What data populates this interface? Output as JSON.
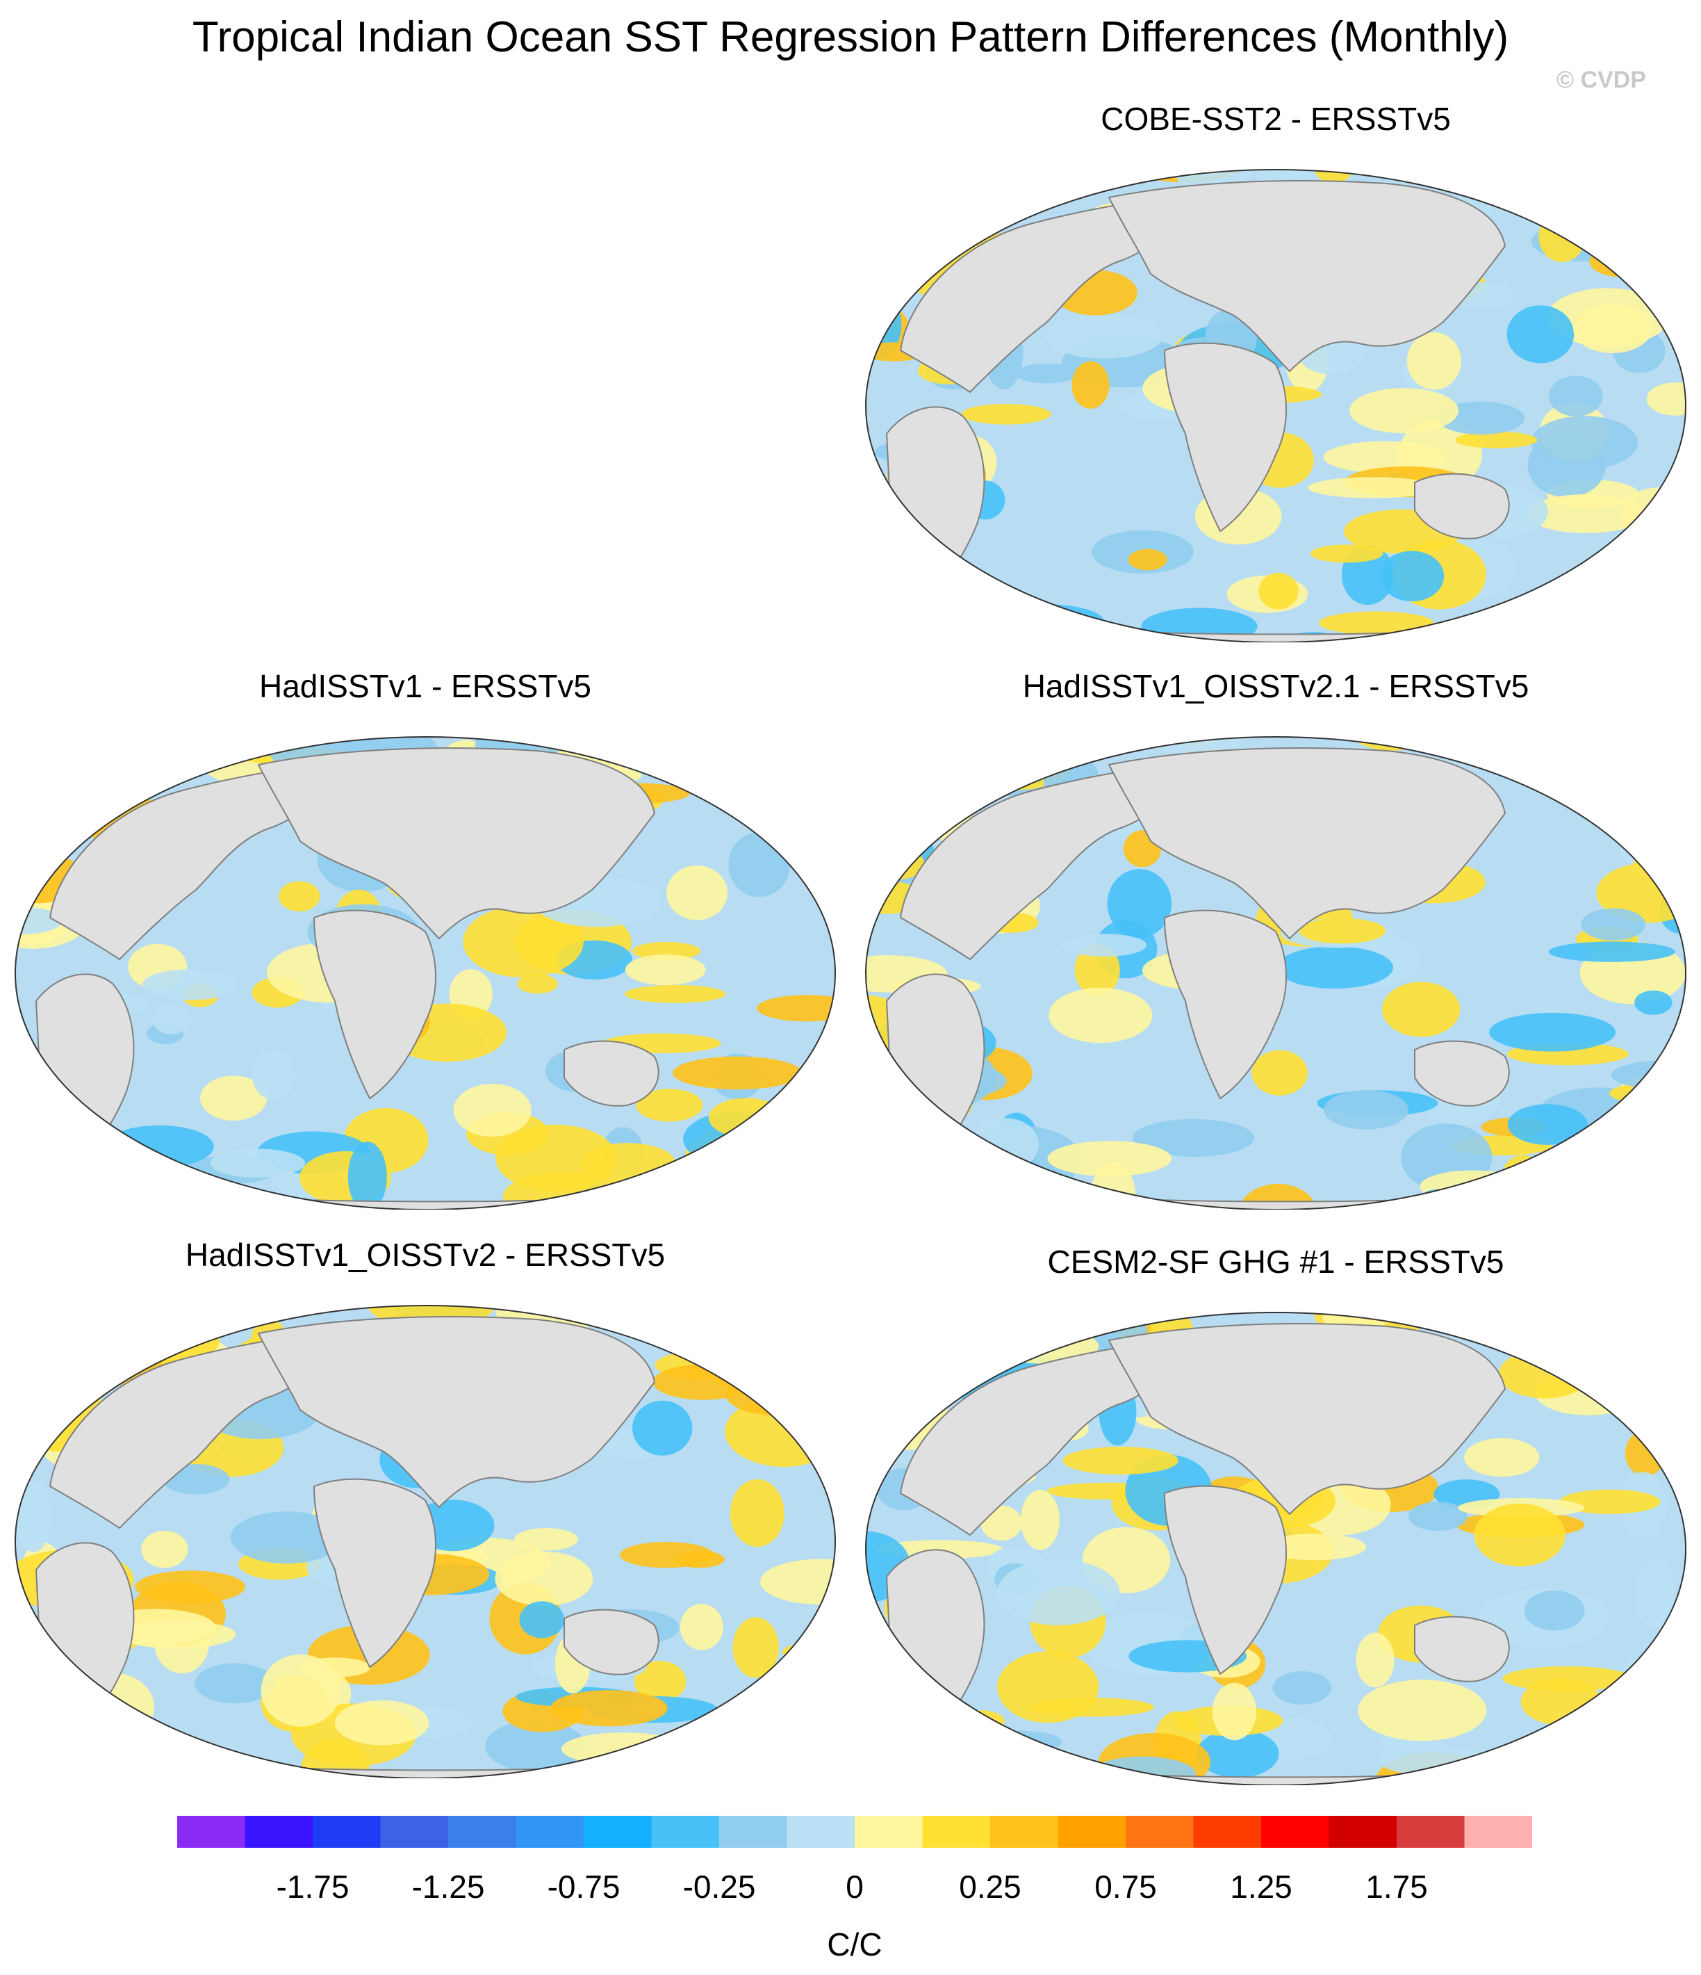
{
  "title": "Tropical Indian Ocean SST Regression Pattern Differences (Monthly)",
  "copyright": "© CVDP",
  "colors": {
    "land": "#e0e0e0",
    "coast": "#7f7f7f",
    "ocean_neutral_pos": "#fff59d",
    "ocean_neutral_neg": "#b8dcf2"
  },
  "panels": [
    {
      "id": "cobe",
      "title": "COBE-SST2 - ERSSTv5"
    },
    {
      "id": "hadisst",
      "title": "HadISSTv1 - ERSSTv5"
    },
    {
      "id": "hadoi21",
      "title": "HadISSTv1_OISSTv2.1 - ERSSTv5"
    },
    {
      "id": "hadoi2",
      "title": "HadISSTv1_OISSTv2 - ERSSTv5"
    },
    {
      "id": "cesm",
      "title": "CESM2-SF GHG #1 - ERSSTv5"
    }
  ],
  "colorbar": {
    "colors": [
      "#8b2bf5",
      "#3a14ff",
      "#1f3cf5",
      "#3c62e6",
      "#3b7fec",
      "#2f95f6",
      "#12b0ff",
      "#47c1f8",
      "#91cdee",
      "#b9e0f4",
      "#fff69e",
      "#ffe033",
      "#ffc21a",
      "#ffa100",
      "#ff7413",
      "#ff3c00",
      "#ff0000",
      "#d20000",
      "#d83d3d",
      "#ffb1b1"
    ],
    "tick_labels": [
      "-1.75",
      "-1.25",
      "-0.75",
      "-0.25",
      "0",
      "0.25",
      "0.75",
      "1.25",
      "1.75"
    ],
    "units": "C/C"
  }
}
